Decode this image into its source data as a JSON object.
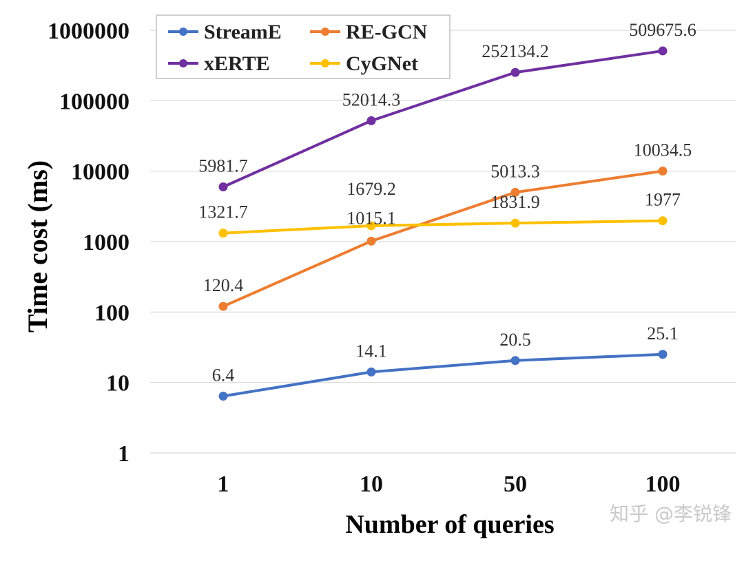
{
  "chart_data": {
    "type": "line",
    "xlabel": "Number of queries",
    "ylabel": "Time cost (ms)",
    "yscale": "log",
    "ylim": [
      1,
      1000000
    ],
    "categories": [
      "1",
      "10",
      "50",
      "100"
    ],
    "ytick_labels": [
      "1",
      "10",
      "100",
      "1000",
      "10000",
      "100000",
      "1000000"
    ],
    "grid": "horizontal",
    "legend_position": "top-left",
    "series": [
      {
        "name": "StreamE",
        "color": "#4472c4",
        "values": [
          6.4,
          14.1,
          20.5,
          25.1
        ],
        "labels": [
          "6.4",
          "14.1",
          "20.5",
          "25.1"
        ]
      },
      {
        "name": "RE-GCN",
        "color": "#ed7d31",
        "values": [
          120.4,
          1015.1,
          5013.3,
          10034.5
        ],
        "labels": [
          "120.4",
          "1015.1",
          "5013.3",
          "10034.5"
        ]
      },
      {
        "name": "xERTE",
        "color": "#7030a0",
        "values": [
          5981.7,
          52014.3,
          252134.2,
          509675.6
        ],
        "labels": [
          "5981.7",
          "52014.3",
          "252134.2",
          "509675.6"
        ]
      },
      {
        "name": "CyGNet",
        "color": "#ffc000",
        "values": [
          1321.7,
          1679.2,
          1831.9,
          1977
        ],
        "labels": [
          "1321.7",
          "1679.2",
          "1831.9",
          "1977"
        ]
      }
    ]
  },
  "watermark": "知乎 @李锐锋"
}
